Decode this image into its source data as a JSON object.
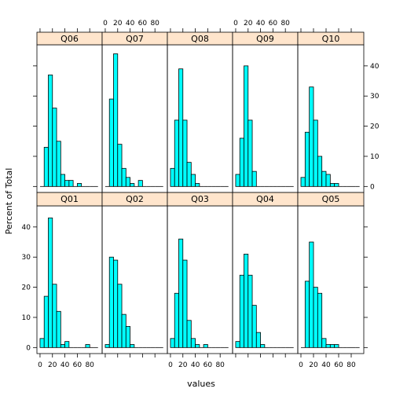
{
  "chart_data": {
    "type": "bar",
    "title": "",
    "xlabel": "values",
    "ylabel": "Percent of Total",
    "xlim": [
      -5,
      100
    ],
    "ylim": [
      -2,
      47
    ],
    "x_ticks": [
      0,
      20,
      40,
      60,
      80
    ],
    "x_tick_labels": [
      "0",
      "20",
      "40",
      "60",
      "80"
    ],
    "y_ticks": [
      0,
      10,
      20,
      30,
      40
    ],
    "y_tick_labels": [
      "0",
      "10",
      "20",
      "30",
      "40"
    ],
    "bin_width": 6.667,
    "bin_start": 0,
    "bar_color": "#00ffff",
    "strip_color": "#ffe5cc",
    "panels": [
      {
        "name": "Q06",
        "row": 0,
        "col": 0,
        "values": [
          0,
          13,
          37,
          26,
          15,
          4,
          2,
          2,
          0,
          1,
          0,
          0,
          0,
          0
        ]
      },
      {
        "name": "Q07",
        "row": 0,
        "col": 1,
        "values": [
          0,
          29,
          44,
          14,
          6,
          3,
          1,
          0,
          2,
          0,
          0,
          0,
          0,
          0
        ]
      },
      {
        "name": "Q08",
        "row": 0,
        "col": 2,
        "values": [
          6,
          22,
          39,
          22,
          8,
          4,
          1,
          0,
          0,
          0,
          0,
          0,
          0,
          0
        ]
      },
      {
        "name": "Q09",
        "row": 0,
        "col": 3,
        "values": [
          4,
          16,
          40,
          22,
          5,
          0,
          0,
          0,
          0,
          0,
          0,
          0,
          0,
          0
        ]
      },
      {
        "name": "Q10",
        "row": 0,
        "col": 4,
        "values": [
          3,
          18,
          33,
          22,
          10,
          5,
          4,
          1,
          1,
          0,
          0,
          0,
          0,
          0
        ]
      },
      {
        "name": "Q01",
        "row": 1,
        "col": 0,
        "values": [
          3,
          17,
          43,
          21,
          12,
          1,
          2,
          0,
          0,
          0,
          0,
          1,
          0,
          0
        ]
      },
      {
        "name": "Q02",
        "row": 1,
        "col": 1,
        "values": [
          1,
          30,
          29,
          21,
          11,
          7,
          1,
          0,
          0,
          0,
          0,
          0,
          0,
          0
        ]
      },
      {
        "name": "Q03",
        "row": 1,
        "col": 2,
        "values": [
          3,
          18,
          36,
          29,
          9,
          3,
          1,
          0,
          1,
          0,
          0,
          0,
          0,
          0
        ]
      },
      {
        "name": "Q04",
        "row": 1,
        "col": 3,
        "values": [
          2,
          24,
          31,
          24,
          14,
          5,
          1,
          0,
          0,
          0,
          0,
          0,
          0,
          0
        ]
      },
      {
        "name": "Q05",
        "row": 1,
        "col": 4,
        "values": [
          0,
          22,
          35,
          20,
          18,
          3,
          1,
          1,
          1,
          0,
          0,
          0,
          0,
          0
        ]
      }
    ]
  }
}
